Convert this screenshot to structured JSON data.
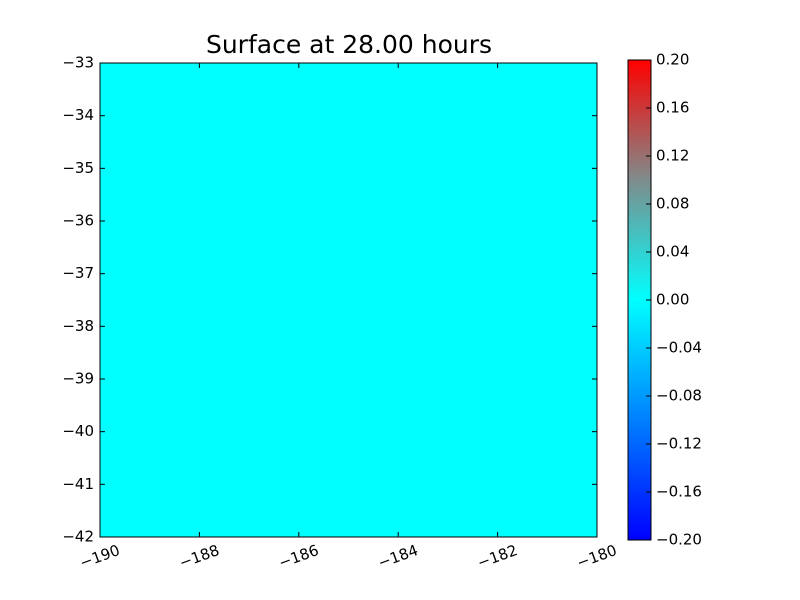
{
  "chart_data": {
    "type": "heatmap",
    "title": "Surface at 28.00 hours",
    "values": [
      [
        0
      ]
    ],
    "xlim": [
      -190,
      -180
    ],
    "xticks": [
      {
        "value": -190,
        "label": "−190"
      },
      {
        "value": -188,
        "label": "−188"
      },
      {
        "value": -186,
        "label": "−186"
      },
      {
        "value": -184,
        "label": "−184"
      },
      {
        "value": -182,
        "label": "−182"
      },
      {
        "value": -180,
        "label": "−180"
      }
    ],
    "ylim": [
      -42,
      -33
    ],
    "yticks": [
      {
        "value": -42,
        "label": "−42"
      },
      {
        "value": -41,
        "label": "−41"
      },
      {
        "value": -40,
        "label": "−40"
      },
      {
        "value": -39,
        "label": "−39"
      },
      {
        "value": -38,
        "label": "−38"
      },
      {
        "value": -37,
        "label": "−37"
      },
      {
        "value": -36,
        "label": "−36"
      },
      {
        "value": -35,
        "label": "−35"
      },
      {
        "value": -34,
        "label": "−34"
      },
      {
        "value": -33,
        "label": "−33"
      }
    ],
    "clim": [
      -0.2,
      0.2
    ],
    "cticks": [
      {
        "value": -0.2,
        "label": "−0.20"
      },
      {
        "value": -0.16,
        "label": "−0.16"
      },
      {
        "value": -0.12,
        "label": "−0.12"
      },
      {
        "value": -0.08,
        "label": "−0.08"
      },
      {
        "value": -0.04,
        "label": "−0.04"
      },
      {
        "value": 0,
        "label": "0.00"
      },
      {
        "value": 0.04,
        "label": "0.04"
      },
      {
        "value": 0.08,
        "label": "0.08"
      },
      {
        "value": 0.12,
        "label": "0.12"
      },
      {
        "value": 0.16,
        "label": "0.16"
      },
      {
        "value": 0.2,
        "label": "0.20"
      }
    ],
    "colormap": [
      "#0000ff",
      "#0080ff",
      "#00ffff",
      "#7f8c8c",
      "#ff0000"
    ]
  }
}
